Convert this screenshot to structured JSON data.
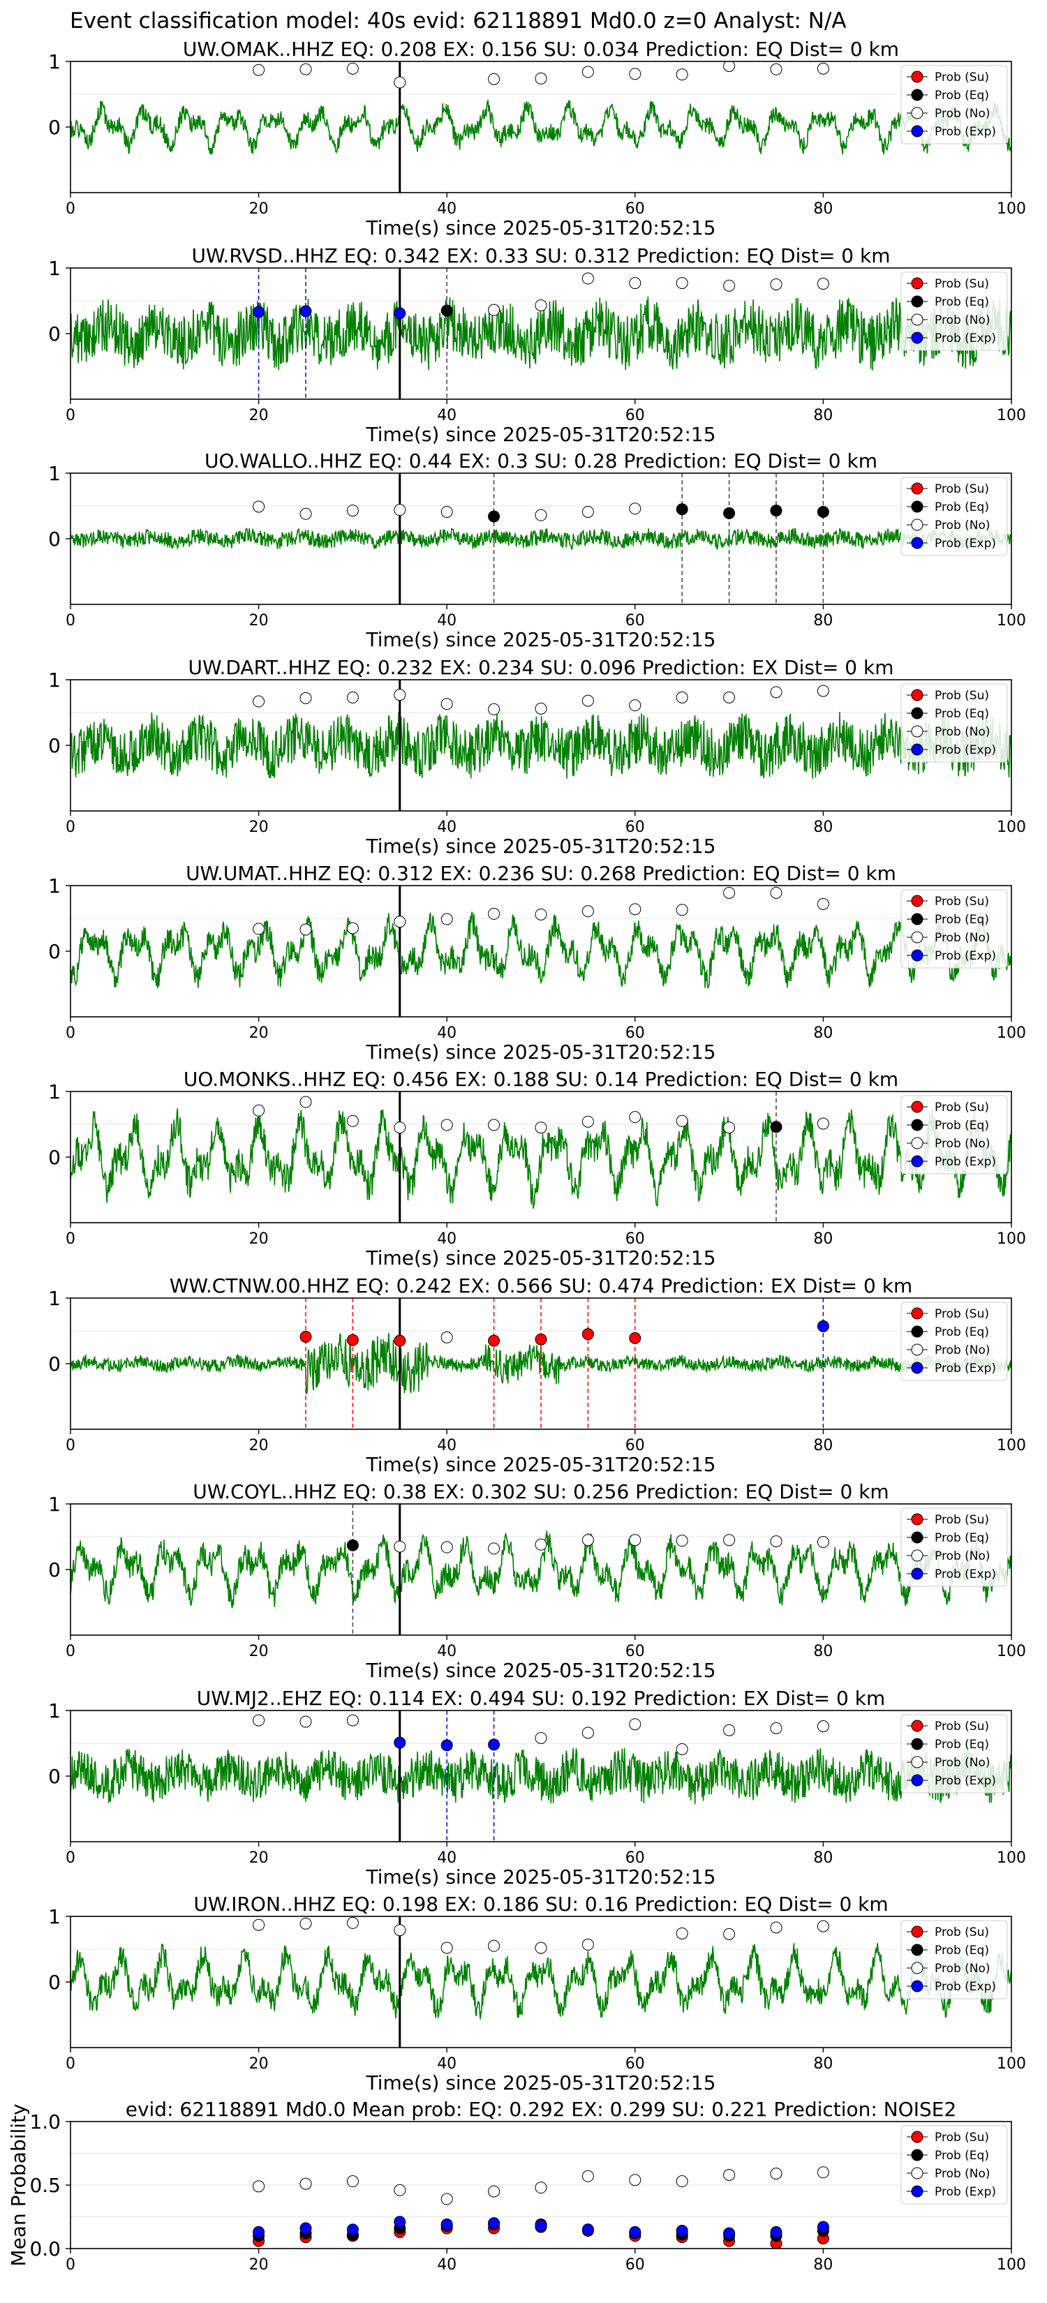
{
  "figure": {
    "suptitle": "Event classification model: 40s evid: 62118891 Md0.0 z=0 Analyst: N/A"
  },
  "legend_labels": [
    "Prob (Su)",
    "Prob (Eq)",
    "Prob (No)",
    "Prob (Exp)"
  ],
  "colors": {
    "trace": "#008000",
    "su": "#ff0000",
    "eq": "#000000",
    "no": "#ffffff",
    "exp": "#0000ff",
    "arrival_line": "#000000"
  },
  "chart_data": [
    {
      "type": "line",
      "title": "UW.OMAK..HHZ   EQ: 0.208  EX: 0.156  SU: 0.034   Prediction: EQ    Dist= 0 km",
      "xlabel": "Time(s) since 2025-05-31T20:52:15",
      "ylabel": "",
      "xlim": [
        0,
        100
      ],
      "ylim": [
        -1,
        1
      ],
      "xticks": [
        "0",
        "20",
        "40",
        "60",
        "80",
        "100"
      ],
      "yticks": [
        "0",
        "1"
      ],
      "arrival_time": 35,
      "trace": {
        "amplitude": 0.3,
        "style": "smooth",
        "seed": 1
      },
      "markers": [
        {
          "x": 20,
          "y": 0.87,
          "cls": "no"
        },
        {
          "x": 25,
          "y": 0.88,
          "cls": "no"
        },
        {
          "x": 30,
          "y": 0.89,
          "cls": "no"
        },
        {
          "x": 35,
          "y": 0.68,
          "cls": "no"
        },
        {
          "x": 45,
          "y": 0.73,
          "cls": "no"
        },
        {
          "x": 50,
          "y": 0.74,
          "cls": "no"
        },
        {
          "x": 55,
          "y": 0.84,
          "cls": "no"
        },
        {
          "x": 60,
          "y": 0.81,
          "cls": "no"
        },
        {
          "x": 65,
          "y": 0.8,
          "cls": "no"
        },
        {
          "x": 70,
          "y": 0.93,
          "cls": "no"
        },
        {
          "x": 75,
          "y": 0.88,
          "cls": "no"
        },
        {
          "x": 80,
          "y": 0.89,
          "cls": "no"
        }
      ]
    },
    {
      "type": "line",
      "title": "UW.RVSD..HHZ   EQ: 0.342  EX: 0.33  SU: 0.312   Prediction: EQ    Dist= 0 km",
      "xlabel": "Time(s) since 2025-05-31T20:52:15",
      "ylabel": "",
      "xlim": [
        0,
        100
      ],
      "ylim": [
        -1,
        1
      ],
      "xticks": [
        "0",
        "20",
        "40",
        "60",
        "80",
        "100"
      ],
      "yticks": [
        "0",
        "1"
      ],
      "arrival_time": 35,
      "trace": {
        "amplitude": 0.42,
        "style": "noisy",
        "seed": 2
      },
      "markers": [
        {
          "x": 20,
          "y": 0.33,
          "cls": "exp"
        },
        {
          "x": 25,
          "y": 0.34,
          "cls": "exp"
        },
        {
          "x": 35,
          "y": 0.31,
          "cls": "exp"
        },
        {
          "x": 40,
          "y": 0.35,
          "cls": "eq"
        },
        {
          "x": 45,
          "y": 0.36,
          "cls": "no"
        },
        {
          "x": 50,
          "y": 0.43,
          "cls": "no"
        },
        {
          "x": 55,
          "y": 0.84,
          "cls": "no"
        },
        {
          "x": 60,
          "y": 0.77,
          "cls": "no"
        },
        {
          "x": 65,
          "y": 0.77,
          "cls": "no"
        },
        {
          "x": 70,
          "y": 0.73,
          "cls": "no"
        },
        {
          "x": 75,
          "y": 0.75,
          "cls": "no"
        },
        {
          "x": 80,
          "y": 0.76,
          "cls": "no"
        }
      ]
    },
    {
      "type": "line",
      "title": "UO.WALLO..HHZ   EQ: 0.44  EX: 0.3  SU: 0.28   Prediction: EQ    Dist= 0 km",
      "xlabel": "Time(s) since 2025-05-31T20:52:15",
      "ylabel": "",
      "xlim": [
        0,
        100
      ],
      "ylim": [
        -1,
        1
      ],
      "xticks": [
        "0",
        "20",
        "40",
        "60",
        "80",
        "100"
      ],
      "yticks": [
        "0",
        "1"
      ],
      "arrival_time": 35,
      "trace": {
        "amplitude": 0.12,
        "style": "noisy",
        "seed": 3
      },
      "markers": [
        {
          "x": 20,
          "y": 0.49,
          "cls": "no"
        },
        {
          "x": 25,
          "y": 0.38,
          "cls": "no"
        },
        {
          "x": 30,
          "y": 0.43,
          "cls": "no"
        },
        {
          "x": 35,
          "y": 0.44,
          "cls": "no"
        },
        {
          "x": 40,
          "y": 0.41,
          "cls": "no"
        },
        {
          "x": 45,
          "y": 0.34,
          "cls": "eq"
        },
        {
          "x": 50,
          "y": 0.36,
          "cls": "no"
        },
        {
          "x": 55,
          "y": 0.41,
          "cls": "no"
        },
        {
          "x": 60,
          "y": 0.46,
          "cls": "no"
        },
        {
          "x": 65,
          "y": 0.45,
          "cls": "eq"
        },
        {
          "x": 70,
          "y": 0.39,
          "cls": "eq"
        },
        {
          "x": 75,
          "y": 0.43,
          "cls": "eq"
        },
        {
          "x": 80,
          "y": 0.41,
          "cls": "eq"
        }
      ]
    },
    {
      "type": "line",
      "title": "UW.DART..HHZ   EQ: 0.232  EX: 0.234  SU: 0.096   Prediction: EX    Dist= 0 km",
      "xlabel": "Time(s) since 2025-05-31T20:52:15",
      "ylabel": "",
      "xlim": [
        0,
        100
      ],
      "ylim": [
        -1,
        1
      ],
      "xticks": [
        "0",
        "20",
        "40",
        "60",
        "80",
        "100"
      ],
      "yticks": [
        "0",
        "1"
      ],
      "arrival_time": 35,
      "trace": {
        "amplitude": 0.38,
        "style": "noisy",
        "seed": 4
      },
      "markers": [
        {
          "x": 20,
          "y": 0.67,
          "cls": "no"
        },
        {
          "x": 25,
          "y": 0.72,
          "cls": "no"
        },
        {
          "x": 30,
          "y": 0.73,
          "cls": "no"
        },
        {
          "x": 35,
          "y": 0.77,
          "cls": "no"
        },
        {
          "x": 40,
          "y": 0.63,
          "cls": "no"
        },
        {
          "x": 45,
          "y": 0.55,
          "cls": "no"
        },
        {
          "x": 50,
          "y": 0.56,
          "cls": "no"
        },
        {
          "x": 55,
          "y": 0.68,
          "cls": "no"
        },
        {
          "x": 60,
          "y": 0.61,
          "cls": "no"
        },
        {
          "x": 65,
          "y": 0.73,
          "cls": "no"
        },
        {
          "x": 70,
          "y": 0.73,
          "cls": "no"
        },
        {
          "x": 75,
          "y": 0.81,
          "cls": "no"
        },
        {
          "x": 80,
          "y": 0.83,
          "cls": "no"
        }
      ]
    },
    {
      "type": "line",
      "title": "UW.UMAT..HHZ   EQ: 0.312  EX: 0.236  SU: 0.268   Prediction: EQ    Dist= 0 km",
      "xlabel": "Time(s) since 2025-05-31T20:52:15",
      "ylabel": "",
      "xlim": [
        0,
        100
      ],
      "ylim": [
        -1,
        1
      ],
      "xticks": [
        "0",
        "20",
        "40",
        "60",
        "80",
        "100"
      ],
      "yticks": [
        "0",
        "1"
      ],
      "arrival_time": 35,
      "trace": {
        "amplitude": 0.42,
        "style": "smooth",
        "seed": 5
      },
      "markers": [
        {
          "x": 20,
          "y": 0.34,
          "cls": "no"
        },
        {
          "x": 25,
          "y": 0.33,
          "cls": "no"
        },
        {
          "x": 30,
          "y": 0.35,
          "cls": "no"
        },
        {
          "x": 35,
          "y": 0.45,
          "cls": "no"
        },
        {
          "x": 40,
          "y": 0.49,
          "cls": "no"
        },
        {
          "x": 45,
          "y": 0.57,
          "cls": "no"
        },
        {
          "x": 50,
          "y": 0.56,
          "cls": "no"
        },
        {
          "x": 55,
          "y": 0.61,
          "cls": "no"
        },
        {
          "x": 60,
          "y": 0.64,
          "cls": "no"
        },
        {
          "x": 65,
          "y": 0.63,
          "cls": "no"
        },
        {
          "x": 70,
          "y": 0.89,
          "cls": "no"
        },
        {
          "x": 75,
          "y": 0.89,
          "cls": "no"
        },
        {
          "x": 80,
          "y": 0.72,
          "cls": "no"
        }
      ]
    },
    {
      "type": "line",
      "title": "UO.MONKS..HHZ   EQ: 0.456  EX: 0.188  SU: 0.14   Prediction: EQ    Dist= 0 km",
      "xlabel": "Time(s) since 2025-05-31T20:52:15",
      "ylabel": "",
      "xlim": [
        0,
        100
      ],
      "ylim": [
        -1,
        1
      ],
      "xticks": [
        "0",
        "20",
        "40",
        "60",
        "80",
        "100"
      ],
      "yticks": [
        "0",
        "1"
      ],
      "arrival_time": 35,
      "trace": {
        "amplitude": 0.55,
        "style": "smooth",
        "seed": 6
      },
      "markers": [
        {
          "x": 20,
          "y": 0.71,
          "cls": "no"
        },
        {
          "x": 25,
          "y": 0.84,
          "cls": "no"
        },
        {
          "x": 30,
          "y": 0.55,
          "cls": "no"
        },
        {
          "x": 35,
          "y": 0.45,
          "cls": "no"
        },
        {
          "x": 40,
          "y": 0.49,
          "cls": "no"
        },
        {
          "x": 45,
          "y": 0.49,
          "cls": "no"
        },
        {
          "x": 50,
          "y": 0.45,
          "cls": "no"
        },
        {
          "x": 55,
          "y": 0.54,
          "cls": "no"
        },
        {
          "x": 60,
          "y": 0.61,
          "cls": "no"
        },
        {
          "x": 65,
          "y": 0.55,
          "cls": "no"
        },
        {
          "x": 70,
          "y": 0.45,
          "cls": "no"
        },
        {
          "x": 75,
          "y": 0.46,
          "cls": "eq"
        },
        {
          "x": 80,
          "y": 0.51,
          "cls": "no"
        }
      ]
    },
    {
      "type": "line",
      "title": "WW.CTNW.00.HHZ   EQ: 0.242  EX: 0.566  SU: 0.474   Prediction: EX    Dist= 0 km",
      "xlabel": "Time(s) since 2025-05-31T20:52:15",
      "ylabel": "",
      "xlim": [
        0,
        100
      ],
      "ylim": [
        -1,
        1
      ],
      "xticks": [
        "0",
        "20",
        "40",
        "60",
        "80",
        "100"
      ],
      "yticks": [
        "0",
        "1"
      ],
      "arrival_time": 35,
      "trace": {
        "amplitude": 0.14,
        "style": "burst",
        "seed": 7
      },
      "markers": [
        {
          "x": 25,
          "y": 0.41,
          "cls": "su"
        },
        {
          "x": 30,
          "y": 0.36,
          "cls": "su"
        },
        {
          "x": 35,
          "y": 0.35,
          "cls": "su"
        },
        {
          "x": 40,
          "y": 0.4,
          "cls": "no"
        },
        {
          "x": 45,
          "y": 0.35,
          "cls": "su"
        },
        {
          "x": 50,
          "y": 0.37,
          "cls": "su"
        },
        {
          "x": 55,
          "y": 0.45,
          "cls": "su"
        },
        {
          "x": 60,
          "y": 0.39,
          "cls": "su"
        },
        {
          "x": 80,
          "y": 0.57,
          "cls": "exp"
        }
      ]
    },
    {
      "type": "line",
      "title": "UW.COYL..HHZ   EQ: 0.38  EX: 0.302  SU: 0.256   Prediction: EQ    Dist= 0 km",
      "xlabel": "Time(s) since 2025-05-31T20:52:15",
      "ylabel": "",
      "xlim": [
        0,
        100
      ],
      "ylim": [
        -1,
        1
      ],
      "xticks": [
        "0",
        "20",
        "40",
        "60",
        "80",
        "100"
      ],
      "yticks": [
        "0",
        "1"
      ],
      "arrival_time": 35,
      "trace": {
        "amplitude": 0.42,
        "style": "smooth",
        "seed": 8
      },
      "markers": [
        {
          "x": 30,
          "y": 0.37,
          "cls": "eq"
        },
        {
          "x": 35,
          "y": 0.35,
          "cls": "no"
        },
        {
          "x": 40,
          "y": 0.34,
          "cls": "no"
        },
        {
          "x": 45,
          "y": 0.32,
          "cls": "no"
        },
        {
          "x": 50,
          "y": 0.38,
          "cls": "no"
        },
        {
          "x": 55,
          "y": 0.45,
          "cls": "no"
        },
        {
          "x": 60,
          "y": 0.45,
          "cls": "no"
        },
        {
          "x": 65,
          "y": 0.44,
          "cls": "no"
        },
        {
          "x": 70,
          "y": 0.45,
          "cls": "no"
        },
        {
          "x": 75,
          "y": 0.43,
          "cls": "no"
        },
        {
          "x": 80,
          "y": 0.42,
          "cls": "no"
        }
      ]
    },
    {
      "type": "line",
      "title": "UW.MJ2..EHZ   EQ: 0.114  EX: 0.494  SU: 0.192   Prediction: EX    Dist= 0 km",
      "xlabel": "Time(s) since 2025-05-31T20:52:15",
      "ylabel": "",
      "xlim": [
        0,
        100
      ],
      "ylim": [
        -1,
        1
      ],
      "xticks": [
        "0",
        "20",
        "40",
        "60",
        "80",
        "100"
      ],
      "yticks": [
        "0",
        "1"
      ],
      "arrival_time": 35,
      "trace": {
        "amplitude": 0.32,
        "style": "noisy",
        "seed": 9
      },
      "markers": [
        {
          "x": 20,
          "y": 0.85,
          "cls": "no"
        },
        {
          "x": 25,
          "y": 0.83,
          "cls": "no"
        },
        {
          "x": 30,
          "y": 0.85,
          "cls": "no"
        },
        {
          "x": 35,
          "y": 0.51,
          "cls": "exp"
        },
        {
          "x": 40,
          "y": 0.47,
          "cls": "exp"
        },
        {
          "x": 45,
          "y": 0.48,
          "cls": "exp"
        },
        {
          "x": 50,
          "y": 0.58,
          "cls": "no"
        },
        {
          "x": 55,
          "y": 0.66,
          "cls": "no"
        },
        {
          "x": 60,
          "y": 0.79,
          "cls": "no"
        },
        {
          "x": 65,
          "y": 0.41,
          "cls": "no"
        },
        {
          "x": 70,
          "y": 0.7,
          "cls": "no"
        },
        {
          "x": 75,
          "y": 0.73,
          "cls": "no"
        },
        {
          "x": 80,
          "y": 0.76,
          "cls": "no"
        }
      ]
    },
    {
      "type": "line",
      "title": "UW.IRON..HHZ   EQ: 0.198  EX: 0.186  SU: 0.16   Prediction: EQ    Dist= 0 km",
      "xlabel": "Time(s) since 2025-05-31T20:52:15",
      "ylabel": "",
      "xlim": [
        0,
        100
      ],
      "ylim": [
        -1,
        1
      ],
      "xticks": [
        "0",
        "20",
        "40",
        "60",
        "80",
        "100"
      ],
      "yticks": [
        "0",
        "1"
      ],
      "arrival_time": 35,
      "trace": {
        "amplitude": 0.42,
        "style": "smooth",
        "seed": 10
      },
      "markers": [
        {
          "x": 20,
          "y": 0.87,
          "cls": "no"
        },
        {
          "x": 25,
          "y": 0.89,
          "cls": "no"
        },
        {
          "x": 30,
          "y": 0.9,
          "cls": "no"
        },
        {
          "x": 35,
          "y": 0.79,
          "cls": "no"
        },
        {
          "x": 40,
          "y": 0.52,
          "cls": "no"
        },
        {
          "x": 45,
          "y": 0.55,
          "cls": "no"
        },
        {
          "x": 50,
          "y": 0.52,
          "cls": "no"
        },
        {
          "x": 55,
          "y": 0.57,
          "cls": "no"
        },
        {
          "x": 65,
          "y": 0.74,
          "cls": "no"
        },
        {
          "x": 70,
          "y": 0.73,
          "cls": "no"
        },
        {
          "x": 75,
          "y": 0.83,
          "cls": "no"
        },
        {
          "x": 80,
          "y": 0.85,
          "cls": "no"
        }
      ]
    },
    {
      "type": "scatter",
      "title": "evid: 62118891  Md0.0   Mean prob:   EQ: 0.292  EX: 0.299  SU: 0.221   Prediction: NOISE2",
      "xlabel": "",
      "ylabel": "Mean Probability",
      "xlim": [
        0,
        100
      ],
      "ylim": [
        0,
        1
      ],
      "xticks": [
        "0",
        "20",
        "40",
        "60",
        "80",
        "100"
      ],
      "yticks": [
        "0.0",
        "0.5",
        "1.0"
      ],
      "series": [
        {
          "name": "Prob (Su)",
          "cls": "su",
          "x": [
            20,
            25,
            30,
            35,
            40,
            45,
            50,
            55,
            60,
            65,
            70,
            75,
            80
          ],
          "y": [
            0.06,
            0.09,
            0.1,
            0.13,
            0.16,
            0.16,
            0.17,
            0.14,
            0.1,
            0.09,
            0.06,
            0.04,
            0.08
          ]
        },
        {
          "name": "Prob (Eq)",
          "cls": "eq",
          "x": [
            20,
            25,
            30,
            35,
            40,
            45,
            50,
            55,
            60,
            65,
            70,
            75,
            80
          ],
          "y": [
            0.1,
            0.12,
            0.11,
            0.16,
            0.18,
            0.19,
            0.19,
            0.15,
            0.12,
            0.11,
            0.1,
            0.1,
            0.14
          ]
        },
        {
          "name": "Prob (No)",
          "cls": "no",
          "x": [
            20,
            25,
            30,
            35,
            40,
            45,
            50,
            55,
            60,
            65,
            70,
            75,
            80
          ],
          "y": [
            0.49,
            0.51,
            0.53,
            0.46,
            0.39,
            0.45,
            0.48,
            0.57,
            0.54,
            0.53,
            0.58,
            0.59,
            0.6
          ]
        },
        {
          "name": "Prob (Exp)",
          "cls": "exp",
          "x": [
            20,
            25,
            30,
            35,
            40,
            45,
            50,
            55,
            60,
            65,
            70,
            75,
            80
          ],
          "y": [
            0.13,
            0.16,
            0.15,
            0.21,
            0.19,
            0.2,
            0.18,
            0.15,
            0.13,
            0.14,
            0.12,
            0.13,
            0.17
          ]
        }
      ]
    }
  ]
}
